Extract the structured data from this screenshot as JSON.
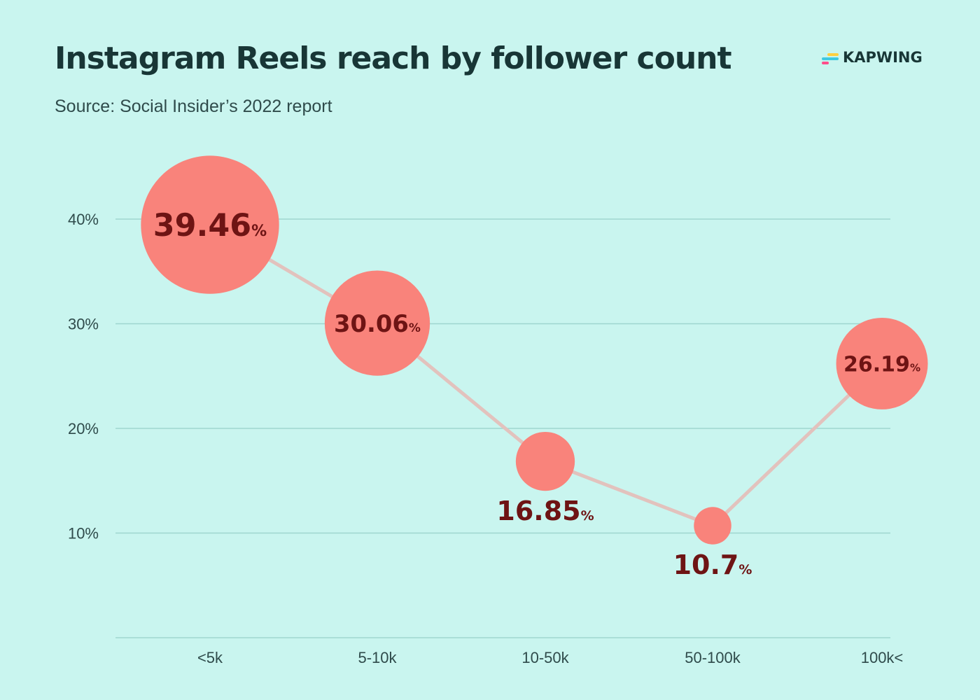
{
  "title": "Instagram Reels reach by follower count",
  "subtitle": "Source: Social Insider’s 2022 report",
  "logo": {
    "text": "KAPWING",
    "icon": "kapwing-logo-icon",
    "mark_colors": [
      "#ffcf3f",
      "#3fc9e0",
      "#ff4d8a"
    ]
  },
  "colors": {
    "background": "#c9f5ef",
    "bubble": "#f9837b",
    "line": "#e2c2bd",
    "label": "#6e1414",
    "grid": "#9fd6cf"
  },
  "chart_data": {
    "type": "scatter",
    "categories": [
      "<5k",
      "5-10k",
      "10-50k",
      "50-100k",
      "100k<"
    ],
    "values": [
      39.46,
      30.06,
      16.85,
      10.7,
      26.19
    ],
    "data_labels": [
      "39.46",
      "30.06",
      "16.85",
      "10.7",
      "26.19"
    ],
    "label_unit": "%",
    "bubble_size_by_value": true,
    "connected_by_line": true,
    "ylim": [
      0,
      40
    ],
    "yticks": [
      10,
      20,
      30,
      40
    ],
    "ytick_labels": [
      "10%",
      "20%",
      "30%",
      "40%"
    ],
    "grid": true,
    "xlabel": "",
    "ylabel": ""
  }
}
